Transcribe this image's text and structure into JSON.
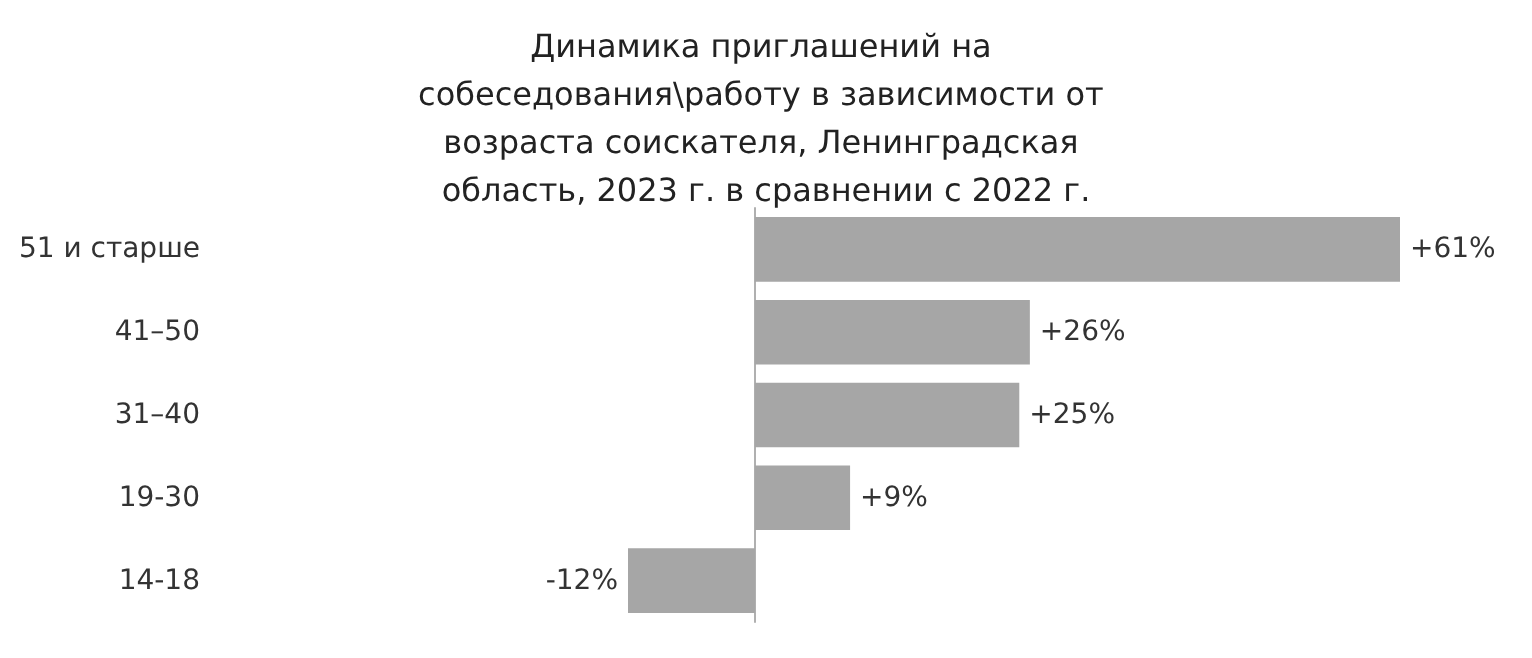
{
  "chart_data": {
    "type": "bar",
    "orientation": "horizontal",
    "title": "Динамика приглашений на собеседования\\работу в зависимости от возраста соискателя, Ленинградская область, 2023 г. в сравнении с 2022 г.",
    "categories": [
      "51 и старше",
      "41–50",
      "31–40",
      "19-30",
      "14-18"
    ],
    "values": [
      61,
      26,
      25,
      9,
      -12
    ],
    "value_labels": [
      "+61%",
      "+26%",
      "+25%",
      "+9%",
      "-12%"
    ],
    "color": "#a6a6a6"
  }
}
